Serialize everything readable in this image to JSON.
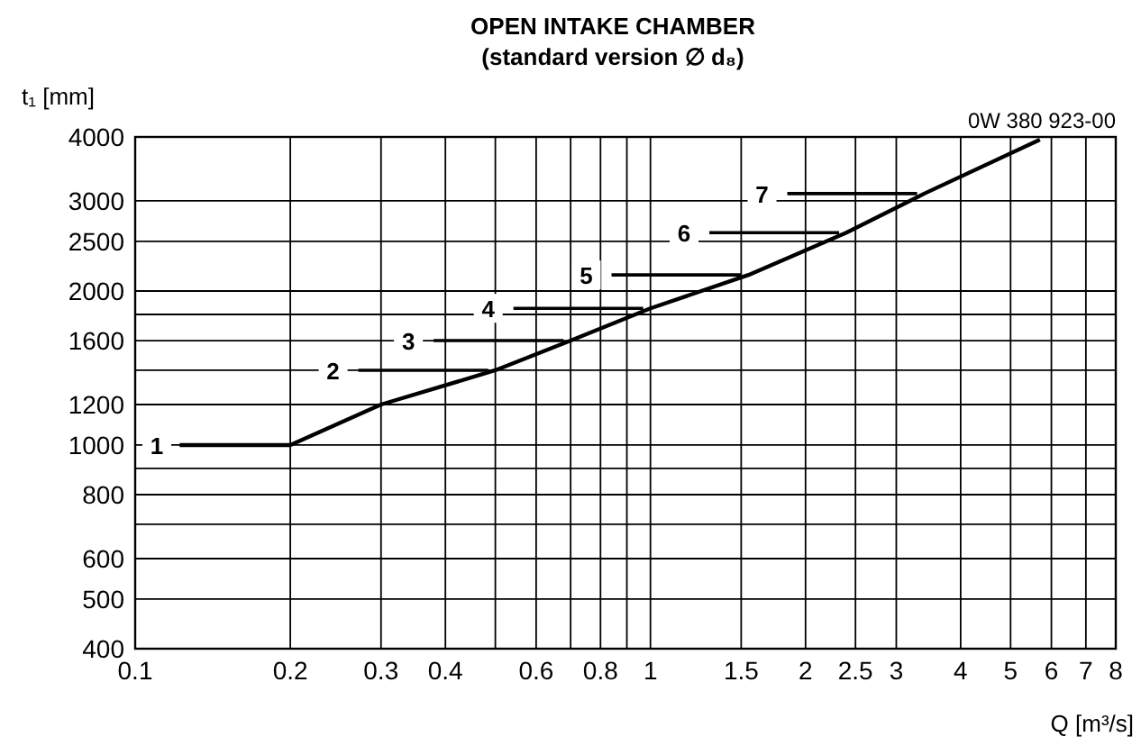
{
  "chart_data": {
    "type": "line",
    "title": "OPEN INTAKE CHAMBER",
    "subtitle": "(standard version ∅ d₈)",
    "xlabel": "Q [m³/s]",
    "ylabel": "t₁ [mm]",
    "log": "xy",
    "grid": true,
    "marker": "none",
    "line_style": "solid",
    "color": "#000000",
    "x": [
      0.122,
      0.2,
      0.3,
      0.5,
      0.7,
      1,
      1.55,
      2.4,
      3.4,
      5.7
    ],
    "values": [
      1000,
      1000,
      1200,
      1400,
      1600,
      1850,
      2150,
      2600,
      3100,
      3950
    ],
    "xlim": [
      0.1,
      8
    ],
    "ylim": [
      400,
      4000
    ],
    "xticks": [
      0.1,
      0.2,
      0.3,
      0.4,
      {
        "value": 0.5,
        "label": null
      },
      0.6,
      {
        "value": 0.7,
        "label": null
      },
      0.8,
      {
        "value": 0.9,
        "label": null
      },
      1,
      1.5,
      2,
      2.5,
      3,
      4,
      5,
      6,
      7,
      8
    ],
    "yticks": [
      400,
      500,
      600,
      {
        "value": 700,
        "label": null
      },
      800,
      {
        "value": 900,
        "label": null
      },
      1000,
      1200,
      {
        "value": 1400,
        "label": null
      },
      1600,
      {
        "value": 1800,
        "label": null
      },
      2000,
      2500,
      3000,
      4000
    ],
    "annotations": [
      {
        "text": "1",
        "x": 0.122,
        "y": 1000
      },
      {
        "text": "2",
        "x": 0.5,
        "y": 1400
      },
      {
        "text": "3",
        "x": 0.7,
        "y": 1600
      },
      {
        "text": "4",
        "x": 1,
        "y": 1850
      },
      {
        "text": "5",
        "x": 1.55,
        "y": 2150
      },
      {
        "text": "6",
        "x": 2.4,
        "y": 2600
      },
      {
        "text": "7",
        "x": 3.4,
        "y": 3100
      },
      "0W 380 923-00"
    ]
  }
}
